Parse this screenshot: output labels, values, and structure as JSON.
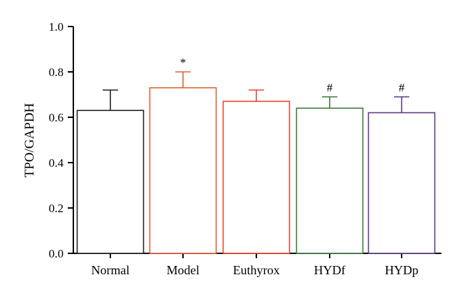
{
  "chart_data": {
    "type": "bar",
    "ylabel": "TPO/GAPDH",
    "xlabel": "",
    "ylim": [
      0,
      1.0
    ],
    "yticks": [
      "0.0",
      "0.2",
      "0.4",
      "0.6",
      "0.8",
      "1.0"
    ],
    "categories": [
      "Normal",
      "Model",
      "Euthyrox",
      "HYDf",
      "HYDp"
    ],
    "values": [
      0.63,
      0.73,
      0.67,
      0.64,
      0.62
    ],
    "error_upper": [
      0.09,
      0.07,
      0.05,
      0.05,
      0.07
    ],
    "annotations": [
      "",
      "*",
      "",
      "#",
      "#"
    ],
    "colors": [
      "#231f20",
      "#e0603a",
      "#e8452e",
      "#3d7a3a",
      "#5a3e85"
    ],
    "grid": false,
    "legend": "none"
  }
}
